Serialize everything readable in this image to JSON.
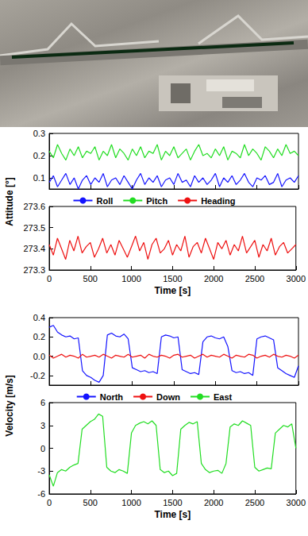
{
  "chart_data": [
    {
      "type": "line",
      "y_label": "Attitude [°]",
      "x_label": "Time [s]",
      "legend": "center",
      "grid": false,
      "xlim": [
        0,
        3000
      ],
      "xticks": [
        0,
        500,
        1000,
        1500,
        2000,
        2500,
        3000
      ],
      "ylim": [
        0.05,
        0.3
      ],
      "yticks": [
        0.1,
        0.2,
        0.3
      ],
      "y2lim": [
        273.3,
        273.6
      ],
      "y2ticks": [
        273.3,
        273.4,
        273.5,
        273.6
      ],
      "x": [
        0,
        50,
        100,
        150,
        200,
        250,
        300,
        350,
        400,
        450,
        500,
        550,
        600,
        650,
        700,
        750,
        800,
        850,
        900,
        950,
        1000,
        1050,
        1100,
        1150,
        1200,
        1250,
        1300,
        1350,
        1400,
        1450,
        1500,
        1550,
        1600,
        1650,
        1700,
        1750,
        1800,
        1850,
        1900,
        1950,
        2000,
        2050,
        2100,
        2150,
        2200,
        2250,
        2300,
        2350,
        2400,
        2450,
        2500,
        2550,
        2600,
        2650,
        2700,
        2750,
        2800,
        2850,
        2900,
        2950,
        3000
      ],
      "series": [
        {
          "name": "Roll",
          "color": "#1414ff",
          "values": [
            0.08,
            0.11,
            0.06,
            0.09,
            0.12,
            0.07,
            0.1,
            0.05,
            0.09,
            0.11,
            0.07,
            0.1,
            0.08,
            0.12,
            0.06,
            0.09,
            0.1,
            0.07,
            0.11,
            0.08,
            0.05,
            0.09,
            0.12,
            0.07,
            0.1,
            0.08,
            0.11,
            0.06,
            0.09,
            0.1,
            0.07,
            0.12,
            0.08,
            0.09,
            0.06,
            0.11,
            0.08,
            0.1,
            0.07,
            0.09,
            0.12,
            0.06,
            0.1,
            0.08,
            0.11,
            0.07,
            0.09,
            0.12,
            0.08,
            0.06,
            0.1,
            0.09,
            0.11,
            0.07,
            0.08,
            0.12,
            0.06,
            0.09,
            0.1,
            0.08,
            0.11
          ]
        },
        {
          "name": "Pitch",
          "color": "#22dd22",
          "values": [
            0.22,
            0.19,
            0.25,
            0.21,
            0.18,
            0.23,
            0.2,
            0.24,
            0.19,
            0.22,
            0.21,
            0.24,
            0.18,
            0.22,
            0.2,
            0.25,
            0.19,
            0.23,
            0.21,
            0.18,
            0.23,
            0.2,
            0.24,
            0.19,
            0.22,
            0.21,
            0.25,
            0.18,
            0.22,
            0.2,
            0.24,
            0.19,
            0.21,
            0.23,
            0.18,
            0.22,
            0.25,
            0.2,
            0.21,
            0.19,
            0.23,
            0.2,
            0.24,
            0.18,
            0.22,
            0.21,
            0.19,
            0.25,
            0.2,
            0.23,
            0.21,
            0.18,
            0.24,
            0.22,
            0.19,
            0.23,
            0.2,
            0.25,
            0.21,
            0.22,
            0.2
          ]
        },
        {
          "name": "Heading",
          "color": "#ee1111",
          "axis": "y2",
          "values": [
            273.42,
            273.37,
            273.45,
            273.4,
            273.35,
            273.44,
            273.39,
            273.46,
            273.38,
            273.41,
            273.43,
            273.36,
            273.4,
            273.45,
            273.38,
            273.42,
            273.37,
            273.44,
            273.4,
            273.36,
            273.41,
            273.46,
            273.39,
            273.43,
            273.35,
            273.42,
            273.45,
            273.38,
            273.4,
            273.44,
            273.37,
            273.42,
            273.39,
            273.46,
            273.36,
            273.41,
            273.43,
            273.38,
            273.45,
            273.4,
            273.35,
            273.43,
            273.4,
            273.44,
            273.37,
            273.42,
            273.39,
            273.46,
            273.38,
            273.41,
            273.44,
            273.36,
            273.42,
            273.39,
            273.45,
            273.37,
            273.41,
            273.43,
            273.38,
            273.4,
            273.42
          ]
        }
      ]
    },
    {
      "type": "line",
      "y_label": "Velocity [m/s]",
      "x_label": "Time [s]",
      "legend": "center",
      "grid": false,
      "xlim": [
        0,
        3000
      ],
      "xticks": [
        0,
        500,
        1000,
        1500,
        2000,
        2500,
        3000
      ],
      "ylim": [
        -0.3,
        0.4
      ],
      "yticks": [
        -0.2,
        {
          "value": 0,
          "label": "0.0"
        },
        0.2,
        0.4
      ],
      "y2lim": [
        -6,
        6
      ],
      "y2ticks": [
        -6,
        -3,
        0,
        3,
        6
      ],
      "x": [
        0,
        50,
        100,
        150,
        200,
        250,
        300,
        350,
        400,
        450,
        500,
        550,
        600,
        650,
        700,
        750,
        800,
        850,
        900,
        950,
        1000,
        1050,
        1100,
        1150,
        1200,
        1250,
        1300,
        1350,
        1400,
        1450,
        1500,
        1550,
        1600,
        1650,
        1700,
        1750,
        1800,
        1850,
        1900,
        1950,
        2000,
        2050,
        2100,
        2150,
        2200,
        2250,
        2300,
        2350,
        2400,
        2450,
        2500,
        2550,
        2600,
        2650,
        2700,
        2750,
        2800,
        2850,
        2900,
        2950,
        3000
      ],
      "series": [
        {
          "name": "North",
          "color": "#1414ff",
          "values": [
            0.3,
            0.32,
            0.25,
            0.22,
            0.2,
            0.21,
            0.18,
            0.19,
            -0.15,
            -0.2,
            -0.22,
            -0.25,
            -0.27,
            -0.2,
            0.22,
            0.24,
            0.21,
            0.2,
            0.23,
            0.18,
            -0.12,
            -0.14,
            -0.16,
            -0.15,
            -0.17,
            -0.16,
            -0.18,
            0.2,
            0.22,
            0.21,
            0.19,
            0.2,
            -0.14,
            -0.16,
            -0.18,
            -0.17,
            -0.19,
            0.15,
            0.2,
            0.21,
            0.19,
            0.18,
            0.2,
            0.1,
            -0.15,
            -0.17,
            -0.16,
            -0.18,
            -0.17,
            -0.2,
            0.18,
            0.2,
            0.21,
            0.19,
            0.17,
            -0.12,
            -0.15,
            -0.18,
            -0.2,
            -0.22,
            -0.1
          ]
        },
        {
          "name": "Down",
          "color": "#ee1111",
          "values": [
            0.01,
            -0.02,
            0.0,
            0.02,
            -0.01,
            0.01,
            0.0,
            -0.02,
            0.02,
            -0.01,
            0.0,
            0.01,
            -0.01,
            0.02,
            0.0,
            -0.02,
            0.01,
            0.0,
            -0.01,
            0.02,
            -0.01,
            0.0,
            0.01,
            -0.02,
            0.02,
            0.0,
            -0.01,
            0.01,
            0.0,
            -0.02,
            0.01,
            0.02,
            -0.01,
            0.0,
            0.01,
            -0.02,
            0.0,
            0.02,
            -0.01,
            0.01,
            0.0,
            -0.01,
            0.02,
            0.0,
            -0.02,
            0.01,
            0.0,
            -0.01,
            0.02,
            0.01,
            -0.02,
            0.0,
            0.01,
            -0.01,
            0.02,
            0.0,
            -0.01,
            0.01,
            0.0,
            -0.02,
            0.01
          ]
        },
        {
          "name": "East",
          "color": "#22dd22",
          "axis": "y2",
          "values": [
            -3.5,
            -5.0,
            -3.2,
            -2.8,
            -3.0,
            -2.5,
            -2.2,
            -2.0,
            2.5,
            3.0,
            3.5,
            3.8,
            4.5,
            4.2,
            -2.5,
            -3.0,
            -3.2,
            -2.8,
            -3.0,
            -3.3,
            2.0,
            3.0,
            3.3,
            3.5,
            3.2,
            3.6,
            3.0,
            -2.8,
            -3.2,
            -3.0,
            -3.6,
            -3.3,
            2.5,
            3.0,
            3.4,
            3.2,
            3.5,
            -2.0,
            -2.8,
            -3.2,
            -3.0,
            -2.9,
            -3.3,
            -2.0,
            2.8,
            3.2,
            3.0,
            3.6,
            3.3,
            3.0,
            -2.5,
            -3.0,
            -2.8,
            -2.6,
            -2.7,
            2.0,
            2.5,
            3.0,
            2.8,
            3.2,
            0.0
          ]
        }
      ]
    }
  ]
}
